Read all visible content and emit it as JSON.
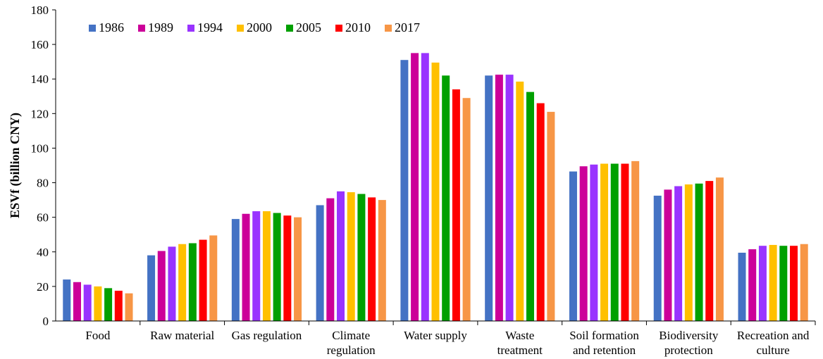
{
  "chart_data": {
    "type": "bar",
    "title": "",
    "xlabel": "",
    "ylabel": "ESVf (billion CNY)",
    "ylim": [
      0,
      180
    ],
    "yticks": [
      0,
      20,
      40,
      60,
      80,
      100,
      120,
      140,
      160,
      180
    ],
    "grid": false,
    "legend_position": "top-left",
    "categories": [
      [
        "Food"
      ],
      [
        "Raw material"
      ],
      [
        "Gas regulation"
      ],
      [
        "Climate",
        "regulation"
      ],
      [
        "Water supply"
      ],
      [
        "Waste",
        "treatment"
      ],
      [
        "Soil formation",
        "and retention"
      ],
      [
        "Biodiversity",
        "protection"
      ],
      [
        "Recreation and",
        "culture"
      ]
    ],
    "series": [
      {
        "name": "1986",
        "color": "#4472C4",
        "values": [
          24,
          38,
          59,
          67,
          151,
          142,
          86.5,
          72.5,
          39.5
        ]
      },
      {
        "name": "1989",
        "color": "#CC0099",
        "values": [
          22.5,
          40.5,
          62,
          71,
          155,
          142.5,
          89.5,
          76,
          41.5
        ]
      },
      {
        "name": "1994",
        "color": "#9933FF",
        "values": [
          21,
          43,
          63.5,
          75,
          155,
          142.5,
          90.5,
          78,
          43.5
        ]
      },
      {
        "name": "2000",
        "color": "#FFC000",
        "values": [
          20,
          44.5,
          63.5,
          74.5,
          149.5,
          138.5,
          91,
          79,
          44
        ]
      },
      {
        "name": "2005",
        "color": "#00A000",
        "values": [
          19,
          45,
          62.5,
          73.5,
          142,
          132.5,
          91,
          79.5,
          43.5
        ]
      },
      {
        "name": "2010",
        "color": "#FF0000",
        "values": [
          17.5,
          47,
          61,
          71.5,
          134,
          126,
          91,
          81,
          43.5
        ]
      },
      {
        "name": "2017",
        "color": "#F79646",
        "values": [
          16,
          49.5,
          60,
          70,
          129,
          121,
          92.5,
          83,
          44.5
        ]
      }
    ]
  }
}
